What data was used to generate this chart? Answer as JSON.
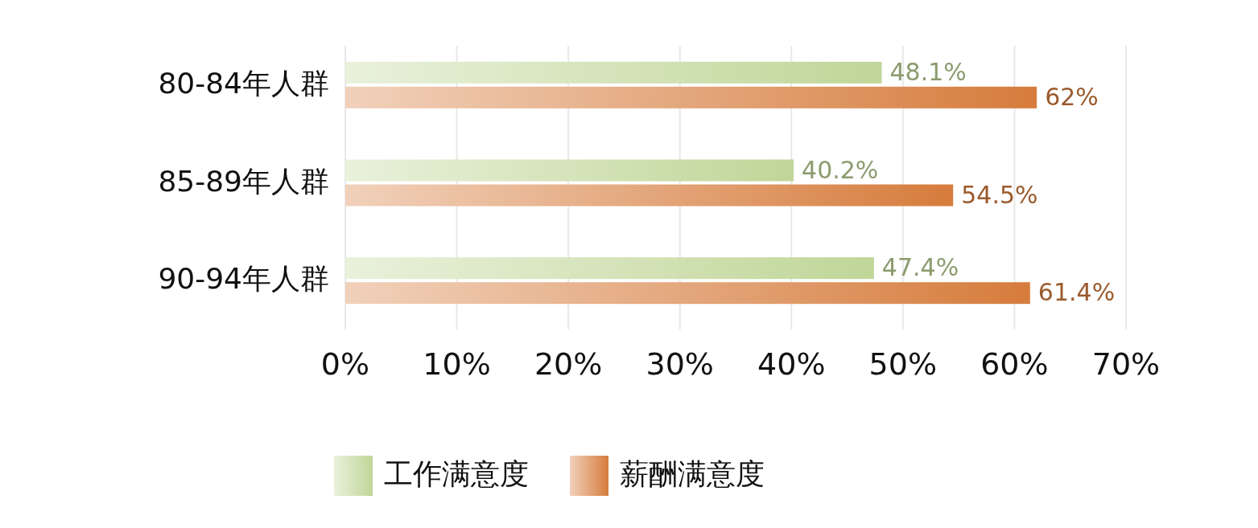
{
  "chart_data": {
    "type": "bar",
    "orientation": "horizontal",
    "categories": [
      "80-84年人群",
      "85-89年人群",
      "90-94年人群"
    ],
    "series": [
      {
        "name": "工作满意度",
        "color": "#c0d698",
        "values": [
          48.1,
          40.2,
          47.4
        ]
      },
      {
        "name": "薪酬满意度",
        "color": "#d67c3c",
        "values": [
          62,
          54.5,
          61.4
        ]
      }
    ],
    "value_labels": [
      [
        "48.1%",
        "40.2%",
        "47.4%"
      ],
      [
        "62%",
        "54.5%",
        "61.4%"
      ]
    ],
    "xlim": [
      0,
      70
    ],
    "xticks": [
      {
        "value": 0,
        "label": "0%"
      },
      {
        "value": 10,
        "label": "10%"
      },
      {
        "value": 20,
        "label": "20%"
      },
      {
        "value": 30,
        "label": "30%"
      },
      {
        "value": 40,
        "label": "40%"
      },
      {
        "value": 50,
        "label": "50%"
      },
      {
        "value": 60,
        "label": "60%"
      },
      {
        "value": 70,
        "label": "70%"
      }
    ],
    "grid": "x",
    "legend": "bottom"
  }
}
